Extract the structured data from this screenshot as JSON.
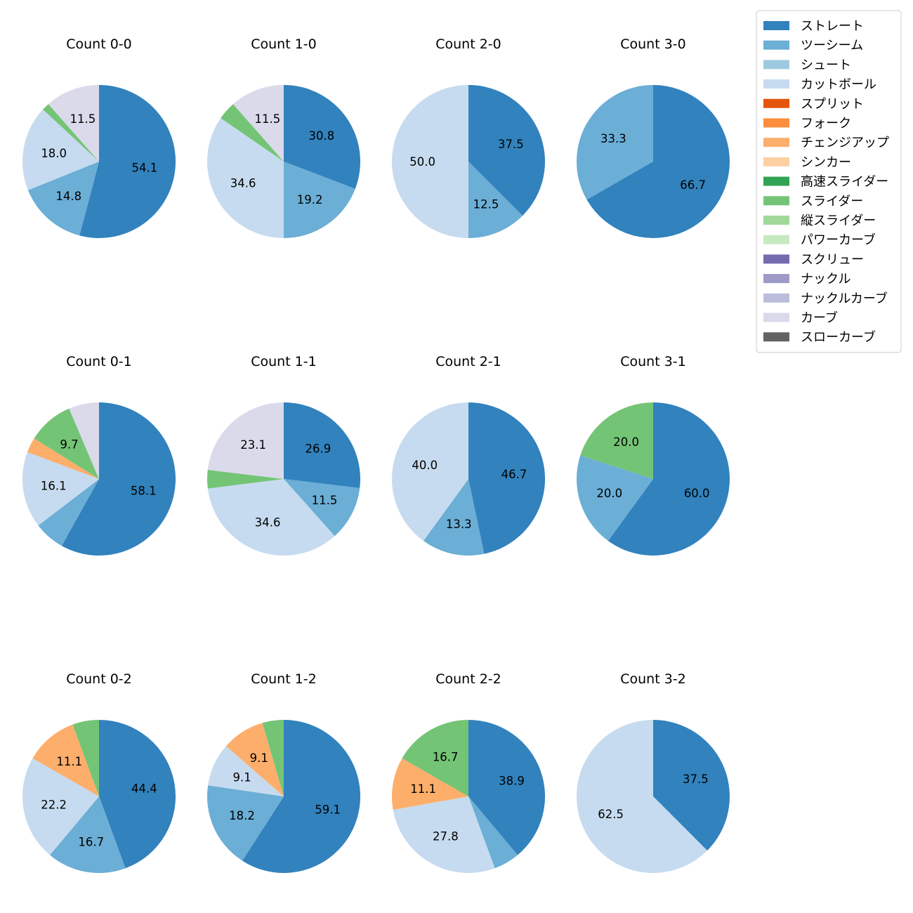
{
  "colors": {
    "ストレート": "#3182bd",
    "ツーシーム": "#6baed6",
    "シュート": "#9ecae1",
    "カットボール": "#c6dbef",
    "スプリット": "#e6550d",
    "フォーク": "#fd8d3c",
    "チェンジアップ": "#fdae6b",
    "シンカー": "#fdd0a2",
    "高速スライダー": "#31a354",
    "スライダー": "#74c476",
    "縦スライダー": "#a1d99b",
    "パワーカーブ": "#c7e9c0",
    "スクリュー": "#756bb1",
    "ナックル": "#9e9ac8",
    "ナックルカーブ": "#bcbddc",
    "カーブ": "#dadaeb",
    "スローカーブ": "#636363"
  },
  "chart_data": {
    "type": "pie",
    "legend": {
      "placement": "top-right",
      "entries": [
        "ストレート",
        "ツーシーム",
        "シュート",
        "カットボール",
        "スプリット",
        "フォーク",
        "チェンジアップ",
        "シンカー",
        "高速スライダー",
        "スライダー",
        "縦スライダー",
        "パワーカーブ",
        "スクリュー",
        "ナックル",
        "ナックルカーブ",
        "カーブ",
        "スローカーブ"
      ]
    },
    "charts": [
      {
        "title": "Count 0-0",
        "slices": [
          {
            "name": "ストレート",
            "value": 54.1,
            "label": "54.1"
          },
          {
            "name": "ツーシーム",
            "value": 14.8,
            "label": "14.8"
          },
          {
            "name": "カットボール",
            "value": 18.0,
            "label": "18.0"
          },
          {
            "name": "スライダー",
            "value": 1.6,
            "label": ""
          },
          {
            "name": "カーブ",
            "value": 11.5,
            "label": "11.5"
          }
        ]
      },
      {
        "title": "Count 1-0",
        "slices": [
          {
            "name": "ストレート",
            "value": 30.8,
            "label": "30.8"
          },
          {
            "name": "ツーシーム",
            "value": 19.2,
            "label": "19.2"
          },
          {
            "name": "カットボール",
            "value": 34.6,
            "label": "34.6"
          },
          {
            "name": "スライダー",
            "value": 3.9,
            "label": ""
          },
          {
            "name": "カーブ",
            "value": 11.5,
            "label": "11.5"
          }
        ]
      },
      {
        "title": "Count 2-0",
        "slices": [
          {
            "name": "ストレート",
            "value": 37.5,
            "label": "37.5"
          },
          {
            "name": "ツーシーム",
            "value": 12.5,
            "label": "12.5"
          },
          {
            "name": "カットボール",
            "value": 50.0,
            "label": "50.0"
          }
        ]
      },
      {
        "title": "Count 3-0",
        "slices": [
          {
            "name": "ストレート",
            "value": 66.7,
            "label": "66.7"
          },
          {
            "name": "ツーシーム",
            "value": 33.3,
            "label": "33.3"
          }
        ]
      },
      {
        "title": "Count 0-1",
        "slices": [
          {
            "name": "ストレート",
            "value": 58.1,
            "label": "58.1"
          },
          {
            "name": "ツーシーム",
            "value": 6.5,
            "label": ""
          },
          {
            "name": "カットボール",
            "value": 16.1,
            "label": "16.1"
          },
          {
            "name": "チェンジアップ",
            "value": 3.2,
            "label": ""
          },
          {
            "name": "スライダー",
            "value": 9.7,
            "label": "9.7"
          },
          {
            "name": "カーブ",
            "value": 6.4,
            "label": ""
          }
        ]
      },
      {
        "title": "Count 1-1",
        "slices": [
          {
            "name": "ストレート",
            "value": 26.9,
            "label": "26.9"
          },
          {
            "name": "ツーシーム",
            "value": 11.5,
            "label": "11.5"
          },
          {
            "name": "カットボール",
            "value": 34.6,
            "label": "34.6"
          },
          {
            "name": "スライダー",
            "value": 3.9,
            "label": ""
          },
          {
            "name": "カーブ",
            "value": 23.1,
            "label": "23.1"
          }
        ]
      },
      {
        "title": "Count 2-1",
        "slices": [
          {
            "name": "ストレート",
            "value": 46.7,
            "label": "46.7"
          },
          {
            "name": "ツーシーム",
            "value": 13.3,
            "label": "13.3"
          },
          {
            "name": "カットボール",
            "value": 40.0,
            "label": "40.0"
          }
        ]
      },
      {
        "title": "Count 3-1",
        "slices": [
          {
            "name": "ストレート",
            "value": 60.0,
            "label": "60.0"
          },
          {
            "name": "ツーシーム",
            "value": 20.0,
            "label": "20.0"
          },
          {
            "name": "スライダー",
            "value": 20.0,
            "label": "20.0"
          }
        ]
      },
      {
        "title": "Count 0-2",
        "slices": [
          {
            "name": "ストレート",
            "value": 44.4,
            "label": "44.4"
          },
          {
            "name": "ツーシーム",
            "value": 16.7,
            "label": "16.7"
          },
          {
            "name": "カットボール",
            "value": 22.2,
            "label": "22.2"
          },
          {
            "name": "チェンジアップ",
            "value": 11.1,
            "label": "11.1"
          },
          {
            "name": "スライダー",
            "value": 5.6,
            "label": ""
          }
        ]
      },
      {
        "title": "Count 1-2",
        "slices": [
          {
            "name": "ストレート",
            "value": 59.1,
            "label": "59.1"
          },
          {
            "name": "ツーシーム",
            "value": 18.2,
            "label": "18.2"
          },
          {
            "name": "カットボール",
            "value": 9.1,
            "label": "9.1"
          },
          {
            "name": "チェンジアップ",
            "value": 9.1,
            "label": "9.1"
          },
          {
            "name": "スライダー",
            "value": 4.5,
            "label": ""
          }
        ]
      },
      {
        "title": "Count 2-2",
        "slices": [
          {
            "name": "ストレート",
            "value": 38.9,
            "label": "38.9"
          },
          {
            "name": "ツーシーム",
            "value": 5.5,
            "label": ""
          },
          {
            "name": "カットボール",
            "value": 27.8,
            "label": "27.8"
          },
          {
            "name": "チェンジアップ",
            "value": 11.1,
            "label": "11.1"
          },
          {
            "name": "スライダー",
            "value": 16.7,
            "label": "16.7"
          }
        ]
      },
      {
        "title": "Count 3-2",
        "slices": [
          {
            "name": "ストレート",
            "value": 37.5,
            "label": "37.5"
          },
          {
            "name": "カットボール",
            "value": 62.5,
            "label": "62.5"
          }
        ]
      }
    ]
  }
}
